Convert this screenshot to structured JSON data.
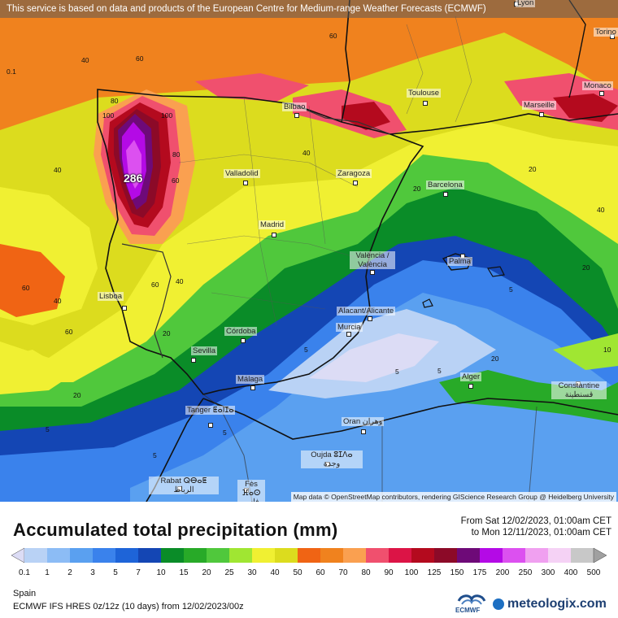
{
  "header": {
    "notice": "This service is based on data and products of the European Centre for Medium-range Weather Forecasts (ECMWF)"
  },
  "map": {
    "attribution": "Map data © OpenStreetMap contributors, rendering GIScience Research Group @ Heidelberg University",
    "max_value": "286",
    "cities": [
      {
        "name": "Lyon"
      },
      {
        "name": "Torino"
      },
      {
        "name": "Monaco"
      },
      {
        "name": "Toulouse"
      },
      {
        "name": "Marseille"
      },
      {
        "name": "Bilbao"
      },
      {
        "name": "Valladolid"
      },
      {
        "name": "Zaragoza"
      },
      {
        "name": "Barcelona"
      },
      {
        "name": "Madrid"
      },
      {
        "name": "València / València"
      },
      {
        "name": "Palma"
      },
      {
        "name": "Lisboa"
      },
      {
        "name": "Alacant/Alicante"
      },
      {
        "name": "Murcia"
      },
      {
        "name": "Córdoba"
      },
      {
        "name": "Sevilla"
      },
      {
        "name": "Málaga"
      },
      {
        "name": "Alger"
      },
      {
        "name": "Constantine قسنطينة"
      },
      {
        "name": "Tanger ⵟⴰⵏⵊⴰ"
      },
      {
        "name": "Oran وهران"
      },
      {
        "name": "Oujda ⵓⵊⴷⴰ وجدة"
      },
      {
        "name": "Rabat ⵕⴱⴰⵟ الرباط"
      },
      {
        "name": "Fès ⴼⴰⵙ فاس"
      }
    ],
    "contour_labels": [
      "0.1",
      "40",
      "60",
      "40",
      "60",
      "40",
      "60",
      "80",
      "100",
      "20",
      "40",
      "60",
      "100",
      "80",
      "60",
      "40",
      "20",
      "5",
      "5",
      "5",
      "5",
      "20",
      "20",
      "40",
      "60",
      "10",
      "5",
      "5",
      "5",
      "20",
      "20"
    ]
  },
  "legend_panel": {
    "title": "Accumulated total precipitation (mm)",
    "from": "From Sat 12/02/2023, 01:00am CET",
    "to": "to Mon 12/11/2023, 01:00am CET",
    "region": "Spain",
    "model": "ECMWF IFS HRES 0z/12z (10 days) from 12/02/2023/00z",
    "ecmwf_logo": "ECMWF",
    "brand": "meteologix.com",
    "ticks": [
      "0.1",
      "1",
      "2",
      "3",
      "5",
      "7",
      "10",
      "15",
      "20",
      "25",
      "30",
      "40",
      "50",
      "60",
      "70",
      "80",
      "90",
      "100",
      "125",
      "150",
      "175",
      "200",
      "250",
      "300",
      "400",
      "500"
    ],
    "colors": [
      "#dcdcf5",
      "#b9d2f5",
      "#8cbcf5",
      "#5aa0f0",
      "#3a82ec",
      "#1e64d8",
      "#1446b4",
      "#0a8c28",
      "#28aa28",
      "#50c83c",
      "#a0e632",
      "#f0f032",
      "#dcdc1e",
      "#f06414",
      "#f0821e",
      "#faa050",
      "#f0506e",
      "#dc1446",
      "#b40a1e",
      "#8c0a28",
      "#6e0a78",
      "#b40ae6",
      "#dc50f0",
      "#f0a0f0",
      "#f5d2f5",
      "#c8c8c8",
      "#a0a0a0"
    ]
  }
}
